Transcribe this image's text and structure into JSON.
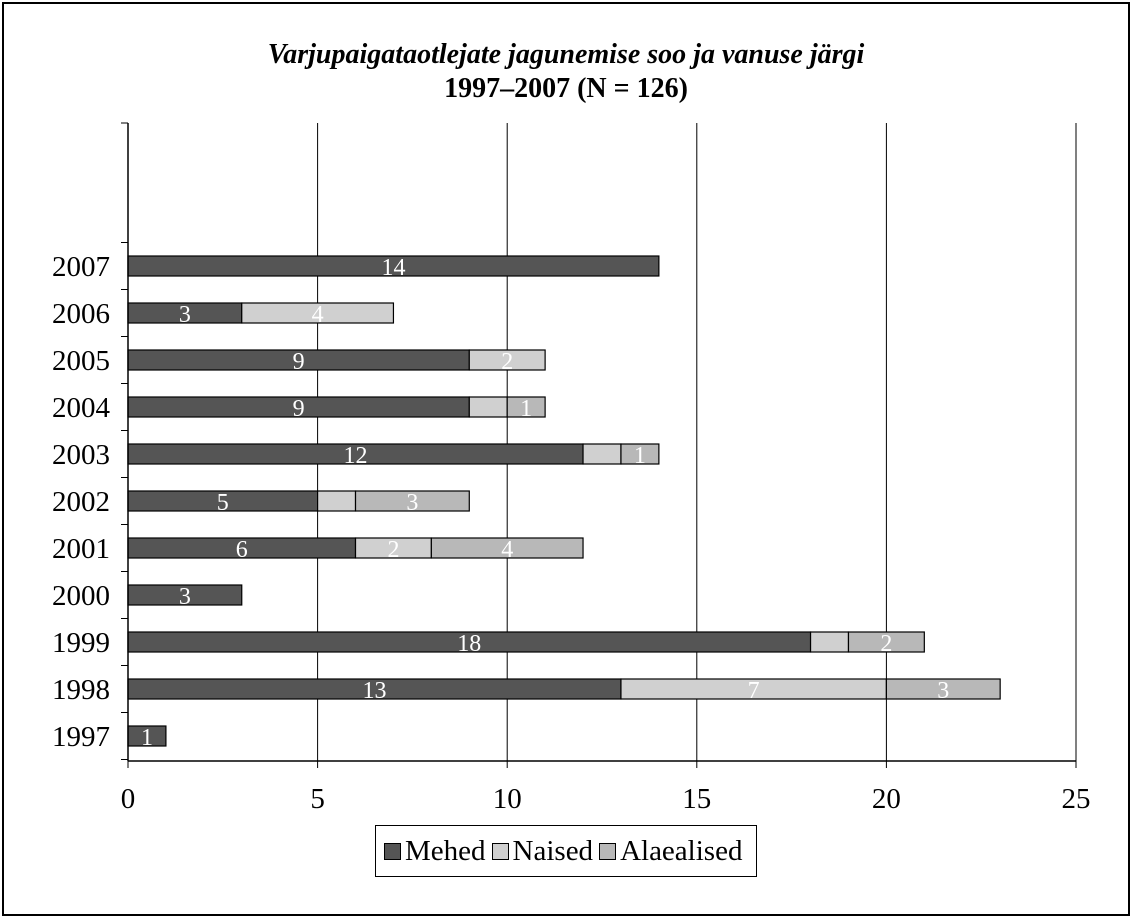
{
  "chart_data": {
    "type": "bar",
    "orientation": "horizontal",
    "stacked": true,
    "title": "Varjupaigataotlejate jagunemise soo ja vanuse järgi",
    "subtitle": "1997–2007 (N = 126)",
    "categories": [
      "1997",
      "1998",
      "1999",
      "2000",
      "2001",
      "2002",
      "2003",
      "2004",
      "2005",
      "2006",
      "2007"
    ],
    "series": [
      {
        "name": "Mehed",
        "color": "#555555",
        "values": [
          1,
          13,
          18,
          3,
          6,
          5,
          12,
          9,
          9,
          3,
          14
        ],
        "labels": [
          "1",
          "13",
          "18",
          "3",
          "6",
          "5",
          "12",
          "9",
          "9",
          "3",
          "14"
        ]
      },
      {
        "name": "Naised",
        "color": "#d0d0d0",
        "values": [
          0,
          7,
          1,
          0,
          2,
          1,
          1,
          1,
          2,
          4,
          0
        ],
        "labels": [
          "",
          "7",
          "",
          "",
          "2",
          "",
          "",
          "",
          "2",
          "4",
          ""
        ]
      },
      {
        "name": "Alaealised",
        "color": "#b8b8b8",
        "values": [
          0,
          3,
          2,
          0,
          4,
          3,
          1,
          1,
          0,
          0,
          0
        ],
        "labels": [
          "",
          "3",
          "2",
          "",
          "4",
          "3",
          "1",
          "1",
          "",
          "",
          ""
        ]
      }
    ],
    "xlim": [
      0,
      25
    ],
    "xticks": [
      "0",
      "5",
      "10",
      "15",
      "20",
      "25"
    ],
    "grid": true,
    "legend": "bottom"
  }
}
